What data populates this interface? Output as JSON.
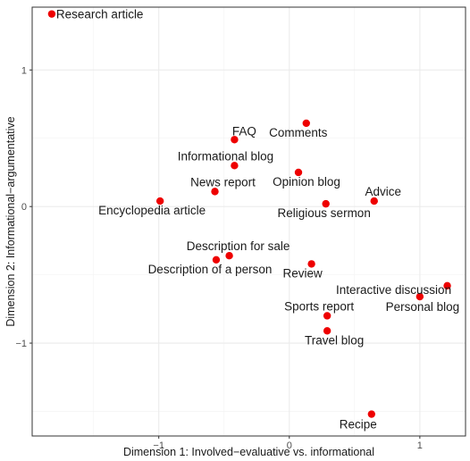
{
  "chart_data": {
    "type": "scatter",
    "title": "",
    "xlabel": "Dimension 1: Involved−evaluative vs. informational",
    "ylabel": "Dimension 2: Informational−argumentative",
    "xlim": [
      -1.97,
      1.35
    ],
    "ylim": [
      -1.68,
      1.46
    ],
    "x_ticks": [
      -1,
      0,
      1
    ],
    "x_tick_labels": [
      "−1",
      "0",
      "1"
    ],
    "y_ticks": [
      -1,
      0,
      1
    ],
    "y_tick_labels": [
      "−1",
      "0",
      "1"
    ],
    "grid": true,
    "point_color": "#ee0000",
    "points": [
      {
        "label": "Research article",
        "x": -1.82,
        "y": 1.41,
        "anchor": "start",
        "dx": 5,
        "dy": 5
      },
      {
        "label": "FAQ",
        "x": -0.42,
        "y": 0.49,
        "anchor": "middle",
        "dx": 11,
        "dy": -5
      },
      {
        "label": "Comments",
        "x": 0.13,
        "y": 0.61,
        "anchor": "middle",
        "dx": -9,
        "dy": 15
      },
      {
        "label": "Informational blog",
        "x": -0.42,
        "y": 0.3,
        "anchor": "middle",
        "dx": -10,
        "dy": -6
      },
      {
        "label": "Opinion blog",
        "x": 0.07,
        "y": 0.25,
        "anchor": "middle",
        "dx": 9,
        "dy": 15
      },
      {
        "label": "News report",
        "x": -0.57,
        "y": 0.11,
        "anchor": "middle",
        "dx": 9,
        "dy": -6
      },
      {
        "label": "Encyclopedia article",
        "x": -0.99,
        "y": 0.04,
        "anchor": "middle",
        "dx": -9,
        "dy": 15
      },
      {
        "label": "Advice",
        "x": 0.65,
        "y": 0.04,
        "anchor": "middle",
        "dx": 10,
        "dy": -6
      },
      {
        "label": "Religious sermon",
        "x": 0.28,
        "y": 0.02,
        "anchor": "middle",
        "dx": -2,
        "dy": 15
      },
      {
        "label": "Description for sale",
        "x": -0.46,
        "y": -0.36,
        "anchor": "middle",
        "dx": 10,
        "dy": -6
      },
      {
        "label": "Description of a person",
        "x": -0.56,
        "y": -0.39,
        "anchor": "middle",
        "dx": -7,
        "dy": 15
      },
      {
        "label": "Review",
        "x": 0.17,
        "y": -0.42,
        "anchor": "middle",
        "dx": -10,
        "dy": 15
      },
      {
        "label": "Interactive discussion",
        "x": 1.21,
        "y": -0.58,
        "anchor": "middle",
        "dx": -60,
        "dy": 9
      },
      {
        "label": "Personal blog",
        "x": 1.0,
        "y": -0.66,
        "anchor": "middle",
        "dx": 3,
        "dy": 16
      },
      {
        "label": "Sports report",
        "x": 0.29,
        "y": -0.8,
        "anchor": "middle",
        "dx": -9,
        "dy": -6
      },
      {
        "label": "Travel blog",
        "x": 0.29,
        "y": -0.91,
        "anchor": "middle",
        "dx": 8,
        "dy": 15
      },
      {
        "label": "Recipe",
        "x": 0.63,
        "y": -1.52,
        "anchor": "middle",
        "dx": -15,
        "dy": 16
      }
    ]
  }
}
